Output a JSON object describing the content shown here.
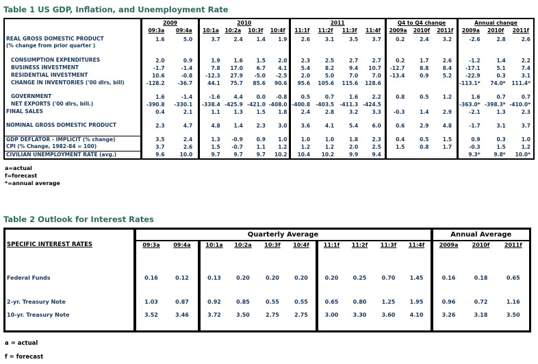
{
  "table1": {
    "title": "Table 1 US GDP, Inflation, and Unemployment Rate",
    "groups": [
      {
        "label": "2009",
        "cols": [
          "09:3a",
          "09:4a"
        ]
      },
      {
        "label": "2010",
        "cols": [
          "10:1a",
          "10:2a",
          "10:3f",
          "10:4f"
        ]
      },
      {
        "label": "2011",
        "cols": [
          "11:1f",
          "11:2f",
          "11:3f",
          "11:4f"
        ]
      },
      {
        "label": "Q4 to Q4 change",
        "cols": [
          "2009a",
          "2010f",
          "2011f"
        ]
      },
      {
        "label": "Annual change",
        "cols": [
          "2009a",
          "2010f",
          "2011f"
        ]
      }
    ],
    "rows": [
      {
        "label": "REAL GROSS DOMESTIC PRODUCT",
        "sublabel": "(% change from prior quarter )",
        "values": [
          "1.6",
          "5.0",
          "3.7",
          "2.4",
          "1.4",
          "1.9",
          "2.6",
          "3.1",
          "3.5",
          "3.7",
          "0.2",
          "2.4",
          "3.2",
          "-2.6",
          "2.8",
          "2.6"
        ]
      },
      {
        "type": "spacer"
      },
      {
        "label": "CONSUMPTION EXPENDITURES",
        "indent": true,
        "values": [
          "2.0",
          "0.9",
          "1.9",
          "1.6",
          "1.5",
          "2.0",
          "2.3",
          "2.5",
          "2.7",
          "2.7",
          "0.2",
          "1.7",
          "2.6",
          "-1.2",
          "1.4",
          "2.2"
        ]
      },
      {
        "label": "BUSINESS INVESTMENT",
        "indent": true,
        "values": [
          "-1.7",
          "-1.4",
          "7.8",
          "17.0",
          "6.7",
          "4.1",
          "5.4",
          "8.2",
          "9.4",
          "10.7",
          "-12.7",
          "8.8",
          "8.4",
          "-17.1",
          "5.1",
          "7.4"
        ]
      },
      {
        "label": "RESIDENTIAL INVESTMENT",
        "indent": true,
        "values": [
          "10.6",
          "-0.8",
          "-12.3",
          "27.9",
          "-5.0",
          "-2.5",
          "2.0",
          "5.0",
          "7.0",
          "7.0",
          "-13.4",
          "0.9",
          "5.2",
          "-22.9",
          "0.3",
          "3.1"
        ]
      },
      {
        "label": "CHANGE IN INVENTORIES ('00 dlrs, bill)",
        "indent": true,
        "values": [
          "-128.2",
          "-36.7",
          "44.1",
          "75.7",
          "85.6",
          "90.6",
          "95.6",
          "105.6",
          "115.6",
          "128.6",
          "",
          "",
          "",
          "-113.1*",
          "74.0*",
          "111.4*"
        ]
      },
      {
        "type": "spacer"
      },
      {
        "label": "GOVERNMENT",
        "indent": true,
        "values": [
          "1.6",
          "-1.4",
          "-1.6",
          "4.4",
          "0.0",
          "-0.8",
          "0.5",
          "0.7",
          "1.6",
          "2.2",
          "0.8",
          "0.5",
          "1.2",
          "1.6",
          "0.7",
          "0.7"
        ]
      },
      {
        "label": "NET EXPORTS ('00 dlrs, bill.)",
        "indent": true,
        "values": [
          "-390.8",
          "-330.1",
          "-338.4",
          "-425.9",
          "-421.0",
          "-408.0",
          "-400.8",
          "-403.5",
          "-411.3",
          "-424.5",
          "",
          "",
          "",
          "-363.0*",
          "-398.3*",
          "-410.0*"
        ]
      },
      {
        "label": "FINAL SALES",
        "values": [
          "0.4",
          "2.1",
          "1.1",
          "1.3",
          "1.5",
          "1.8",
          "2.4",
          "2.8",
          "3.2",
          "3.3",
          "-0.3",
          "1.4",
          "2.9",
          "-2.1",
          "1.3",
          "2.3"
        ]
      },
      {
        "type": "spacer"
      },
      {
        "label": "NOMINAL GROSS DOMESTIC PRODUCT",
        "values": [
          "2.3",
          "4.7",
          "4.8",
          "1.4",
          "2.3",
          "3.0",
          "3.6",
          "4.1",
          "5.4",
          "6.0",
          "0.6",
          "2.9",
          "4.8",
          "-1.7",
          "3.1",
          "3.7"
        ]
      },
      {
        "type": "spacer"
      },
      {
        "label": "GDP DEFLATOR - IMPLICIT (% change)",
        "topline": true,
        "values": [
          "3.5",
          "2.4",
          "1.3",
          "-0.9",
          "0.9",
          "1.0",
          "1.0",
          "1.0",
          "1.8",
          "2.3",
          "0.4",
          "0.5",
          "1.5",
          "0.9",
          "0.3",
          "1.0"
        ]
      },
      {
        "label": "CPI (% Change, 1982-84 = 100)",
        "values": [
          "3.7",
          "2.6",
          "1.5",
          "-0.7",
          "1.1",
          "1.2",
          "1.2",
          "1.2",
          "2.0",
          "2.5",
          "1.5",
          "0.8",
          "1.7",
          "-0.3",
          "1.5",
          "1.2"
        ]
      },
      {
        "label": "CIVILIAN UNEMPLOYMENT RATE (avg.)",
        "topline": true,
        "values": [
          "9.6",
          "10.0",
          "9.7",
          "9.7",
          "9.7",
          "10.2",
          "10.4",
          "10.2",
          "9.9",
          "9.4",
          "",
          "",
          "",
          "9.3*",
          "9.8*",
          "10.0*"
        ]
      }
    ],
    "footnotes": [
      "a=actual",
      "f=forecast",
      "*=annual average"
    ]
  },
  "table2": {
    "title": "Table 2 Outlook for Interest Rates",
    "label_header": "SPECIFIC INTEREST RATES",
    "quarterly_header": "Quarterly Average",
    "annual_header": "Annual Average",
    "groups": [
      {
        "cols": [
          "09:3a",
          "09:4a"
        ]
      },
      {
        "cols": [
          "10:1a",
          "10:2a",
          "10:3f",
          "10:4f"
        ]
      },
      {
        "cols": [
          "11:1f",
          "11:2f",
          "11:3f",
          "11:4f"
        ]
      },
      {
        "cols": [
          "2009a",
          "2010f",
          "2011f"
        ]
      }
    ],
    "rows": [
      {
        "type": "spacer"
      },
      {
        "label": "Federal Funds",
        "values": [
          "0.16",
          "0.12",
          "0.13",
          "0.20",
          "0.20",
          "0.20",
          "0.20",
          "0.25",
          "0.70",
          "1.45",
          "0.16",
          "0.18",
          "0.65"
        ]
      },
      {
        "type": "spacer"
      },
      {
        "label": "2-yr. Treasury Note",
        "values": [
          "1.03",
          "0.87",
          "0.92",
          "0.85",
          "0.55",
          "0.55",
          "0.65",
          "0.80",
          "1.25",
          "1.95",
          "0.96",
          "0.72",
          "1.16"
        ]
      },
      {
        "label": "10-yr. Treasury Note",
        "values": [
          "3.52",
          "3.46",
          "3.72",
          "3.50",
          "2.75",
          "2.75",
          "3.00",
          "3.30",
          "3.60",
          "4.10",
          "3.26",
          "3.18",
          "3.50"
        ]
      },
      {
        "type": "spacer"
      }
    ],
    "footnotes": [
      "a = actual",
      "f = forecast"
    ]
  }
}
